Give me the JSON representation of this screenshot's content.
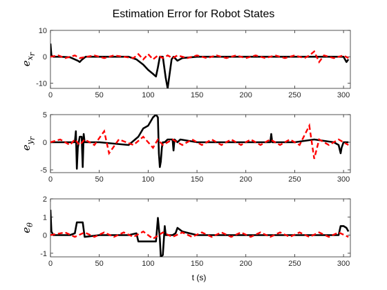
{
  "chart_data": {
    "title": "Estimation Error for Robot States",
    "xlabel": "t (s)",
    "colors": {
      "estimate": "#000000",
      "bound": "#ff0000",
      "axes": "#262626"
    },
    "panels": [
      {
        "type": "line",
        "ylabel": {
          "base": "e",
          "sub": "x",
          "subsub": "r"
        },
        "xlim": [
          0,
          307
        ],
        "ylim": [
          -12,
          10
        ],
        "xticks": [
          0,
          50,
          100,
          150,
          200,
          250,
          300
        ],
        "yticks": [
          -10,
          0,
          10
        ],
        "error_series": {
          "x": [
            0,
            1,
            3,
            10,
            20,
            28,
            30,
            32,
            36,
            40,
            60,
            80,
            88,
            95,
            100,
            105,
            108,
            110,
            112,
            115,
            118,
            120,
            124,
            126,
            130,
            135,
            150,
            200,
            250,
            300,
            303,
            305
          ],
          "y": [
            5,
            0.5,
            0,
            0,
            -0.2,
            -1.5,
            -2,
            -1.2,
            0,
            0,
            0,
            0,
            -1,
            -3,
            -5,
            -6.5,
            -7.5,
            -4,
            0,
            0,
            -8,
            -12,
            -1,
            0,
            -1.5,
            -0.5,
            0,
            0,
            0,
            0,
            -2,
            -1
          ]
        },
        "bound_series": {
          "x": [
            0,
            8,
            15,
            25,
            30,
            45,
            55,
            65,
            85,
            90,
            95,
            100,
            105,
            110,
            115,
            120,
            125,
            130,
            140,
            150,
            160,
            170,
            180,
            190,
            200,
            210,
            220,
            230,
            240,
            250,
            260,
            265,
            270,
            275,
            280,
            290,
            300,
            305
          ],
          "y": [
            0,
            0.5,
            -0.5,
            0.5,
            -0.5,
            0.5,
            -0.5,
            0.5,
            -0.5,
            1,
            -1,
            1,
            -1,
            0.5,
            -0.5,
            0.5,
            -0.5,
            0.5,
            -0.5,
            0.5,
            -0.5,
            0.5,
            -0.5,
            0.5,
            -0.5,
            0.5,
            -0.5,
            0.5,
            -0.5,
            0.5,
            -0.5,
            0.5,
            2,
            -2,
            0.5,
            -0.5,
            0.5,
            -0.5
          ]
        }
      },
      {
        "type": "line",
        "ylabel": {
          "base": "e",
          "sub": "y",
          "subsub": "r"
        },
        "xlim": [
          0,
          307
        ],
        "ylim": [
          -5.5,
          5
        ],
        "xticks": [
          0,
          50,
          100,
          150,
          200,
          250,
          300
        ],
        "yticks": [
          -5,
          0,
          5
        ],
        "error_series": {
          "x": [
            0,
            10,
            20,
            25,
            26,
            27,
            28,
            30,
            32,
            33,
            34,
            35,
            50,
            80,
            90,
            95,
            100,
            105,
            108,
            110,
            111,
            112,
            113,
            114,
            115,
            117,
            120,
            125,
            126,
            127,
            130,
            133,
            150,
            200,
            225,
            226,
            227,
            250,
            270,
            290,
            295,
            297,
            298,
            300,
            305
          ],
          "y": [
            0,
            0,
            0,
            0,
            2,
            -4.8,
            -1,
            1,
            1,
            -4.5,
            1.5,
            0,
            0,
            -0.5,
            1,
            2.5,
            3,
            4.5,
            5,
            4.5,
            -2,
            -4.5,
            -3.5,
            -1,
            0,
            0,
            0.5,
            0.5,
            -1.5,
            0.5,
            0,
            0.5,
            0,
            0,
            0,
            1.5,
            0,
            0,
            0.5,
            0,
            -0.5,
            -2,
            -1,
            0,
            0
          ]
        },
        "bound_series": {
          "x": [
            0,
            10,
            20,
            25,
            30,
            35,
            45,
            55,
            60,
            70,
            85,
            95,
            105,
            110,
            115,
            125,
            135,
            145,
            155,
            165,
            175,
            185,
            195,
            205,
            215,
            225,
            235,
            245,
            255,
            265,
            270,
            275,
            285,
            295,
            305
          ],
          "y": [
            0,
            0.5,
            -0.5,
            0.5,
            -0.5,
            0.5,
            -0.5,
            2,
            -2,
            0.5,
            -0.5,
            1,
            -1,
            0.5,
            -0.5,
            0.5,
            -0.5,
            0.5,
            -0.5,
            0.5,
            -0.5,
            0.5,
            -0.5,
            0.5,
            -0.5,
            0.5,
            -0.5,
            0.5,
            -0.5,
            3,
            -3,
            0.5,
            -0.5,
            0.5,
            -0.5
          ]
        }
      },
      {
        "type": "line",
        "ylabel": {
          "base": "e",
          "sub": "θ",
          "subsub": ""
        },
        "xlim": [
          0,
          307
        ],
        "ylim": [
          -1.2,
          2
        ],
        "xticks": [
          0,
          50,
          100,
          150,
          200,
          250,
          300
        ],
        "yticks": [
          -1,
          0,
          1,
          2
        ],
        "error_series": {
          "x": [
            0,
            1,
            3,
            10,
            20,
            25,
            27,
            30,
            33,
            35,
            50,
            80,
            88,
            90,
            100,
            108,
            110,
            112,
            113,
            115,
            117,
            118,
            120,
            125,
            128,
            130,
            135,
            150,
            200,
            250,
            295,
            297,
            300,
            303,
            305
          ],
          "y": [
            1.4,
            0.2,
            0,
            0,
            0,
            0.1,
            0.7,
            0.7,
            0.7,
            -0.1,
            0,
            0,
            0.1,
            -0.35,
            -0.35,
            -0.35,
            0.95,
            -0.2,
            -1.2,
            -1.1,
            0.5,
            0,
            0,
            0,
            0.1,
            0.4,
            0.2,
            0,
            0,
            0,
            0,
            0.5,
            0.5,
            0.4,
            0.2
          ]
        },
        "bound_series": {
          "x": [
            0,
            15,
            25,
            35,
            45,
            55,
            65,
            75,
            85,
            95,
            105,
            115,
            125,
            135,
            145,
            155,
            165,
            175,
            185,
            195,
            205,
            215,
            225,
            235,
            245,
            255,
            265,
            275,
            285,
            295,
            305
          ],
          "y": [
            0,
            0.15,
            -0.1,
            0.15,
            -0.1,
            0.15,
            -0.1,
            0.15,
            -0.1,
            0.2,
            -0.2,
            0.15,
            -0.1,
            0.15,
            -0.1,
            0.15,
            -0.1,
            0.15,
            -0.1,
            0.15,
            -0.1,
            0.15,
            -0.1,
            0.15,
            -0.1,
            0.15,
            -0.1,
            0.15,
            -0.1,
            0.15,
            -0.1
          ]
        }
      }
    ]
  }
}
